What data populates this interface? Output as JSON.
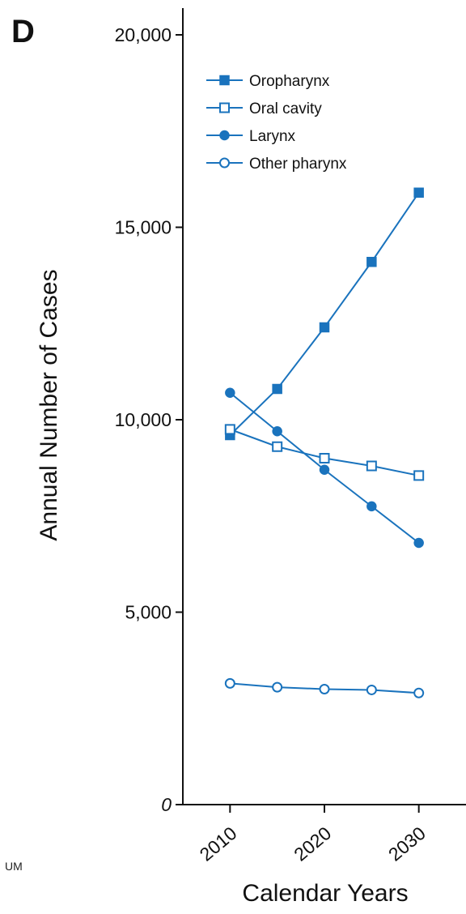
{
  "panel_label": "D",
  "footer_fragment": "UM",
  "colors": {
    "series": "#1a73bd",
    "axis": "#111111"
  },
  "chart_data": {
    "type": "line",
    "xlabel": "Calendar Years",
    "ylabel": "Annual Number of Cases",
    "x": [
      2010,
      2015,
      2020,
      2025,
      2030
    ],
    "xlim": [
      2005,
      2035
    ],
    "ylim": [
      0,
      20000
    ],
    "x_ticks": [
      2010,
      2020,
      2030
    ],
    "x_tick_labels": [
      "2010",
      "2020",
      "2030"
    ],
    "y_ticks": [
      0,
      5000,
      10000,
      15000,
      20000
    ],
    "y_tick_labels": [
      "0",
      "5,000",
      "10,000",
      "15,000",
      "20,000"
    ],
    "grid": false,
    "legend_position": "top-left",
    "series": [
      {
        "name": "Oropharynx",
        "marker": "square-filled",
        "values": [
          9600,
          10800,
          12400,
          14100,
          15900
        ]
      },
      {
        "name": "Oral cavity",
        "marker": "square-open",
        "values": [
          9750,
          9300,
          9000,
          8800,
          8550
        ]
      },
      {
        "name": "Larynx",
        "marker": "circle-filled",
        "values": [
          10700,
          9700,
          8700,
          7750,
          6800
        ]
      },
      {
        "name": "Other pharynx",
        "marker": "circle-open",
        "values": [
          3150,
          3050,
          3000,
          2980,
          2900
        ]
      }
    ]
  }
}
